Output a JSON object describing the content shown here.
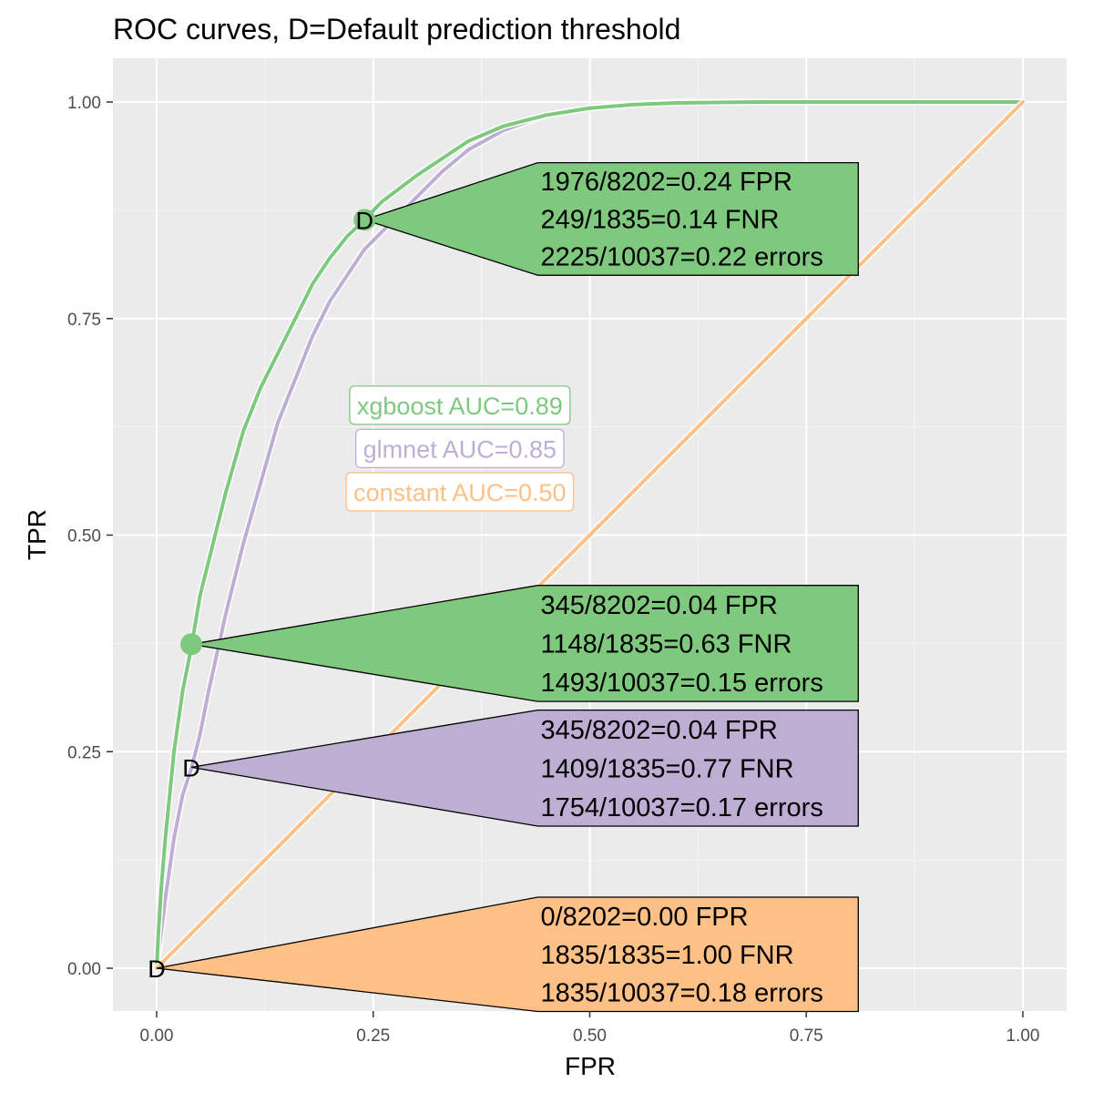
{
  "chart_data": {
    "type": "line",
    "title": "ROC curves, D=Default prediction threshold",
    "xlabel": "FPR",
    "ylabel": "TPR",
    "xlim": [
      0,
      1
    ],
    "ylim": [
      0,
      1
    ],
    "xticks": [
      "0.00",
      "0.25",
      "0.50",
      "0.75",
      "1.00"
    ],
    "yticks": [
      "0.00",
      "0.25",
      "0.50",
      "0.75",
      "1.00"
    ],
    "grid": true,
    "series": [
      {
        "name": "xgboost",
        "color": "#7fc97f",
        "x": [
          0,
          0.002,
          0.005,
          0.01,
          0.015,
          0.02,
          0.03,
          0.04,
          0.05,
          0.06,
          0.07,
          0.08,
          0.1,
          0.12,
          0.14,
          0.16,
          0.18,
          0.2,
          0.22,
          0.24,
          0.26,
          0.28,
          0.3,
          0.33,
          0.36,
          0.4,
          0.45,
          0.5,
          0.55,
          0.6,
          0.7,
          0.8,
          0.9,
          1.0
        ],
        "y": [
          0,
          0.04,
          0.09,
          0.15,
          0.2,
          0.25,
          0.32,
          0.37,
          0.43,
          0.47,
          0.51,
          0.55,
          0.62,
          0.67,
          0.71,
          0.75,
          0.79,
          0.82,
          0.845,
          0.864,
          0.885,
          0.9,
          0.915,
          0.935,
          0.955,
          0.972,
          0.985,
          0.993,
          0.997,
          0.999,
          1.0,
          1.0,
          1.0,
          1.0
        ]
      },
      {
        "name": "glmnet",
        "color": "#beaed4",
        "x": [
          0,
          0.005,
          0.01,
          0.02,
          0.03,
          0.04,
          0.05,
          0.06,
          0.08,
          0.1,
          0.12,
          0.14,
          0.16,
          0.18,
          0.2,
          0.22,
          0.24,
          0.26,
          0.28,
          0.3,
          0.33,
          0.36,
          0.4,
          0.45,
          0.5,
          0.55,
          0.6,
          0.7,
          0.8,
          0.9,
          1.0
        ],
        "y": [
          0,
          0.04,
          0.08,
          0.15,
          0.2,
          0.23,
          0.27,
          0.32,
          0.41,
          0.49,
          0.56,
          0.63,
          0.68,
          0.73,
          0.77,
          0.8,
          0.83,
          0.85,
          0.87,
          0.89,
          0.92,
          0.945,
          0.967,
          0.985,
          0.993,
          0.998,
          1.0,
          1.0,
          1.0,
          1.0,
          1.0
        ]
      },
      {
        "name": "constant",
        "color": "#fdc086",
        "x": [
          0,
          1
        ],
        "y": [
          0,
          1
        ]
      }
    ],
    "auc_labels": [
      {
        "text": "xgboost AUC=0.89",
        "color": "#7fc97f",
        "x": 0.35,
        "y": 0.65
      },
      {
        "text": "glmnet AUC=0.85",
        "color": "#beaed4",
        "x": 0.35,
        "y": 0.6
      },
      {
        "text": "constant AUC=0.50",
        "color": "#fdc086",
        "x": 0.35,
        "y": 0.55
      }
    ],
    "threshold_points": [
      {
        "series": "xgboost",
        "x": 0.24,
        "y": 0.864,
        "label": "D",
        "color": "#7fc97f",
        "marker": true
      },
      {
        "series": "xgboost",
        "x": 0.04,
        "y": 0.374,
        "label": "",
        "color": "#7fc97f",
        "marker": true
      },
      {
        "series": "glmnet",
        "x": 0.04,
        "y": 0.232,
        "label": "D",
        "color": "#beaed4",
        "marker": false
      },
      {
        "series": "constant",
        "x": 0.0,
        "y": 0.0,
        "label": "D",
        "color": "#fdc086",
        "marker": false
      }
    ],
    "callouts": [
      {
        "color": "#7fc97f",
        "point_x": 0.24,
        "point_y": 0.864,
        "box_x0": 0.44,
        "box_x1": 0.81,
        "box_y_top": 0.93,
        "box_y_bottom": 0.8,
        "lines": [
          "1976/8202=0.24 FPR",
          "249/1835=0.14 FNR",
          "2225/10037=0.22 errors"
        ]
      },
      {
        "color": "#7fc97f",
        "point_x": 0.04,
        "point_y": 0.374,
        "box_x0": 0.44,
        "box_x1": 0.81,
        "box_y_top": 0.442,
        "box_y_bottom": 0.308,
        "lines": [
          "345/8202=0.04 FPR",
          "1148/1835=0.63 FNR",
          "1493/10037=0.15 errors"
        ]
      },
      {
        "color": "#beaed4",
        "point_x": 0.04,
        "point_y": 0.232,
        "box_x0": 0.44,
        "box_x1": 0.81,
        "box_y_top": 0.298,
        "box_y_bottom": 0.164,
        "lines": [
          "345/8202=0.04 FPR",
          "1409/1835=0.77 FNR",
          "1754/10037=0.17 errors"
        ]
      },
      {
        "color": "#fdc086",
        "point_x": 0.0,
        "point_y": 0.0,
        "box_x0": 0.44,
        "box_x1": 0.81,
        "box_y_top": 0.082,
        "box_y_bottom": -0.05,
        "lines": [
          "0/8202=0.00 FPR",
          "1835/1835=1.00 FNR",
          "1835/10037=0.18 errors"
        ]
      }
    ]
  }
}
